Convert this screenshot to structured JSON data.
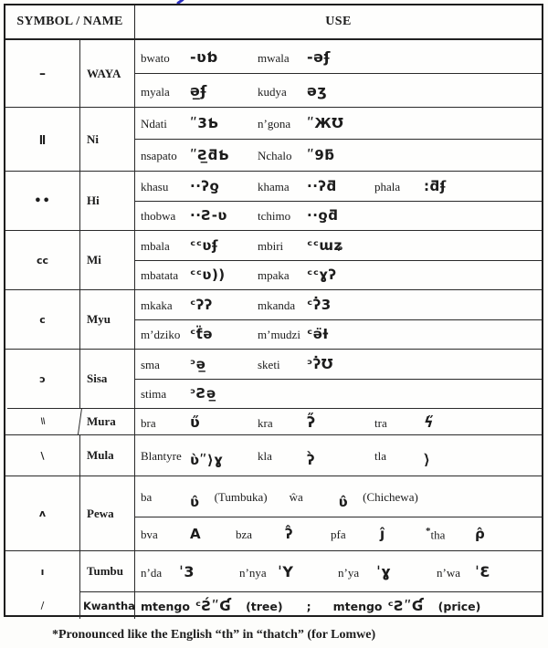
{
  "header": {
    "symbol_name_label": "SYMBOL / NAME",
    "use_label": "USE"
  },
  "footnote": "*Pronounced like the English “th” in “thatch” (for Lomwe)",
  "ink_mark_color": "#2a2ec0",
  "rows": [
    {
      "symbol": "–",
      "name": "WAYA",
      "lines": [
        [
          {
            "word": "bwato",
            "glyph": "-ʋƅ"
          },
          {
            "word": "mwala",
            "glyph": "-ǝʄ"
          }
        ],
        [
          {
            "word": "myala",
            "glyph": "ǝ̲ʄ"
          },
          {
            "word": "kudya",
            "glyph": "ǝʒ"
          }
        ]
      ]
    },
    {
      "symbol": "ǁ",
      "name": "Ni",
      "lines": [
        [
          {
            "word": "Ndati",
            "glyph": "ʺ3Ƅ"
          },
          {
            "word": "n’gona",
            "glyph": "ʺЖƱ"
          }
        ],
        [
          {
            "word": "nsapato",
            "glyph": "ʺƧ̲ƌƄ"
          },
          {
            "word": "Nchalo",
            "glyph": "ʺ9ƃ"
          }
        ]
      ]
    },
    {
      "symbol": "••",
      "name": "Hi",
      "lines": [
        [
          {
            "word": "khasu",
            "glyph": "··ʔƍ"
          },
          {
            "word": "khama",
            "glyph": "··ʔƌ"
          },
          {
            "word": "phala",
            "glyph": ":ƌʄ"
          }
        ],
        [
          {
            "word": "thobwa",
            "glyph": "··Ƨ-ʋ"
          },
          {
            "word": "tchimo",
            "glyph": "··ƍƌ"
          }
        ]
      ]
    },
    {
      "symbol": "cc",
      "name": "Mi",
      "lines": [
        [
          {
            "word": "mbala",
            "glyph": "ᶜᶜʋʄ"
          },
          {
            "word": "mbiri",
            "glyph": "ᶜᶜɯʑ"
          }
        ],
        [
          {
            "word": "mbatata",
            "glyph": "ᶜᶜʋ))"
          },
          {
            "word": "mpaka",
            "glyph": "ᶜᶜɣʔ"
          }
        ]
      ]
    },
    {
      "symbol": "c",
      "name": "Myu",
      "lines": [
        [
          {
            "word": "mkaka",
            "glyph": "ᶜʔʔ"
          },
          {
            "word": "mkanda",
            "glyph": "ᶜʔ̇3"
          }
        ],
        [
          {
            "word": "m’dziko",
            "glyph": "ᶜƭ̈ǝ"
          },
          {
            "word": "m’mudzi",
            "glyph": "ᶜǝ̈Ɨ"
          }
        ]
      ]
    },
    {
      "symbol": "ɔ",
      "name": "Sisa",
      "lines": [
        [
          {
            "word": "sma",
            "glyph": "ᵓǝ̲"
          },
          {
            "word": "sketi",
            "glyph": "ᵓʔ̇Ʊ"
          }
        ],
        [
          {
            "word": "stima",
            "glyph": "ᵓƧǝ̲"
          }
        ]
      ]
    },
    {
      "symbol": "\\\\",
      "name": "Mura",
      "lines": [
        [
          {
            "word": "bra",
            "glyph": "ʋ̋"
          },
          {
            "word": "kra",
            "glyph": "ʔ̋"
          },
          {
            "word": "tra",
            "glyph": "ϟ̋"
          }
        ]
      ]
    },
    {
      "symbol": "\\",
      "name": "Mula",
      "lines": [
        [
          {
            "word": "Blantyre",
            "glyph": "ʋ̀ʺ⟩ɣ"
          },
          {
            "word": "kla",
            "glyph": "ʔ̀"
          },
          {
            "word": "tla",
            "glyph": "⟩̀"
          }
        ]
      ]
    },
    {
      "symbol": "ʌ",
      "name": "Pewa",
      "lines": [
        [
          {
            "word": "ba",
            "glyph": "ʋ̂",
            "note": "(Tumbuka)"
          },
          {
            "word": "ŵa",
            "glyph": "ʋ̂",
            "note": "(Chichewa)"
          }
        ],
        [
          {
            "word": "bva",
            "glyph": "A"
          },
          {
            "word": "bza",
            "glyph": "ʔ̂"
          },
          {
            "word": "pfa",
            "glyph": "ĵ"
          },
          {
            "word": "tha",
            "star": "*",
            "glyph": "ρ̂"
          }
        ]
      ]
    },
    {
      "symbol": "ı",
      "name": "Tumbu",
      "lines": [
        [
          {
            "word": "n’da",
            "glyph": "ˈ3"
          },
          {
            "word": "n’nya",
            "glyph": "ˈY"
          },
          {
            "word": "n’ya",
            "glyph": "ˈɣ"
          },
          {
            "word": "n’wa",
            "glyph": "ˈƐ"
          }
        ]
      ]
    },
    {
      "symbol": "/",
      "name": "Kwantha",
      "hand": true,
      "lines": [
        [
          {
            "word": "mtengo",
            "glyph": "ᶜƧ́ʺƓ",
            "note": "(tree)",
            "sep": ";"
          },
          {
            "word": "mtengo",
            "glyph": "ᶜƧʺƓ",
            "note": "(price)"
          }
        ]
      ]
    }
  ]
}
